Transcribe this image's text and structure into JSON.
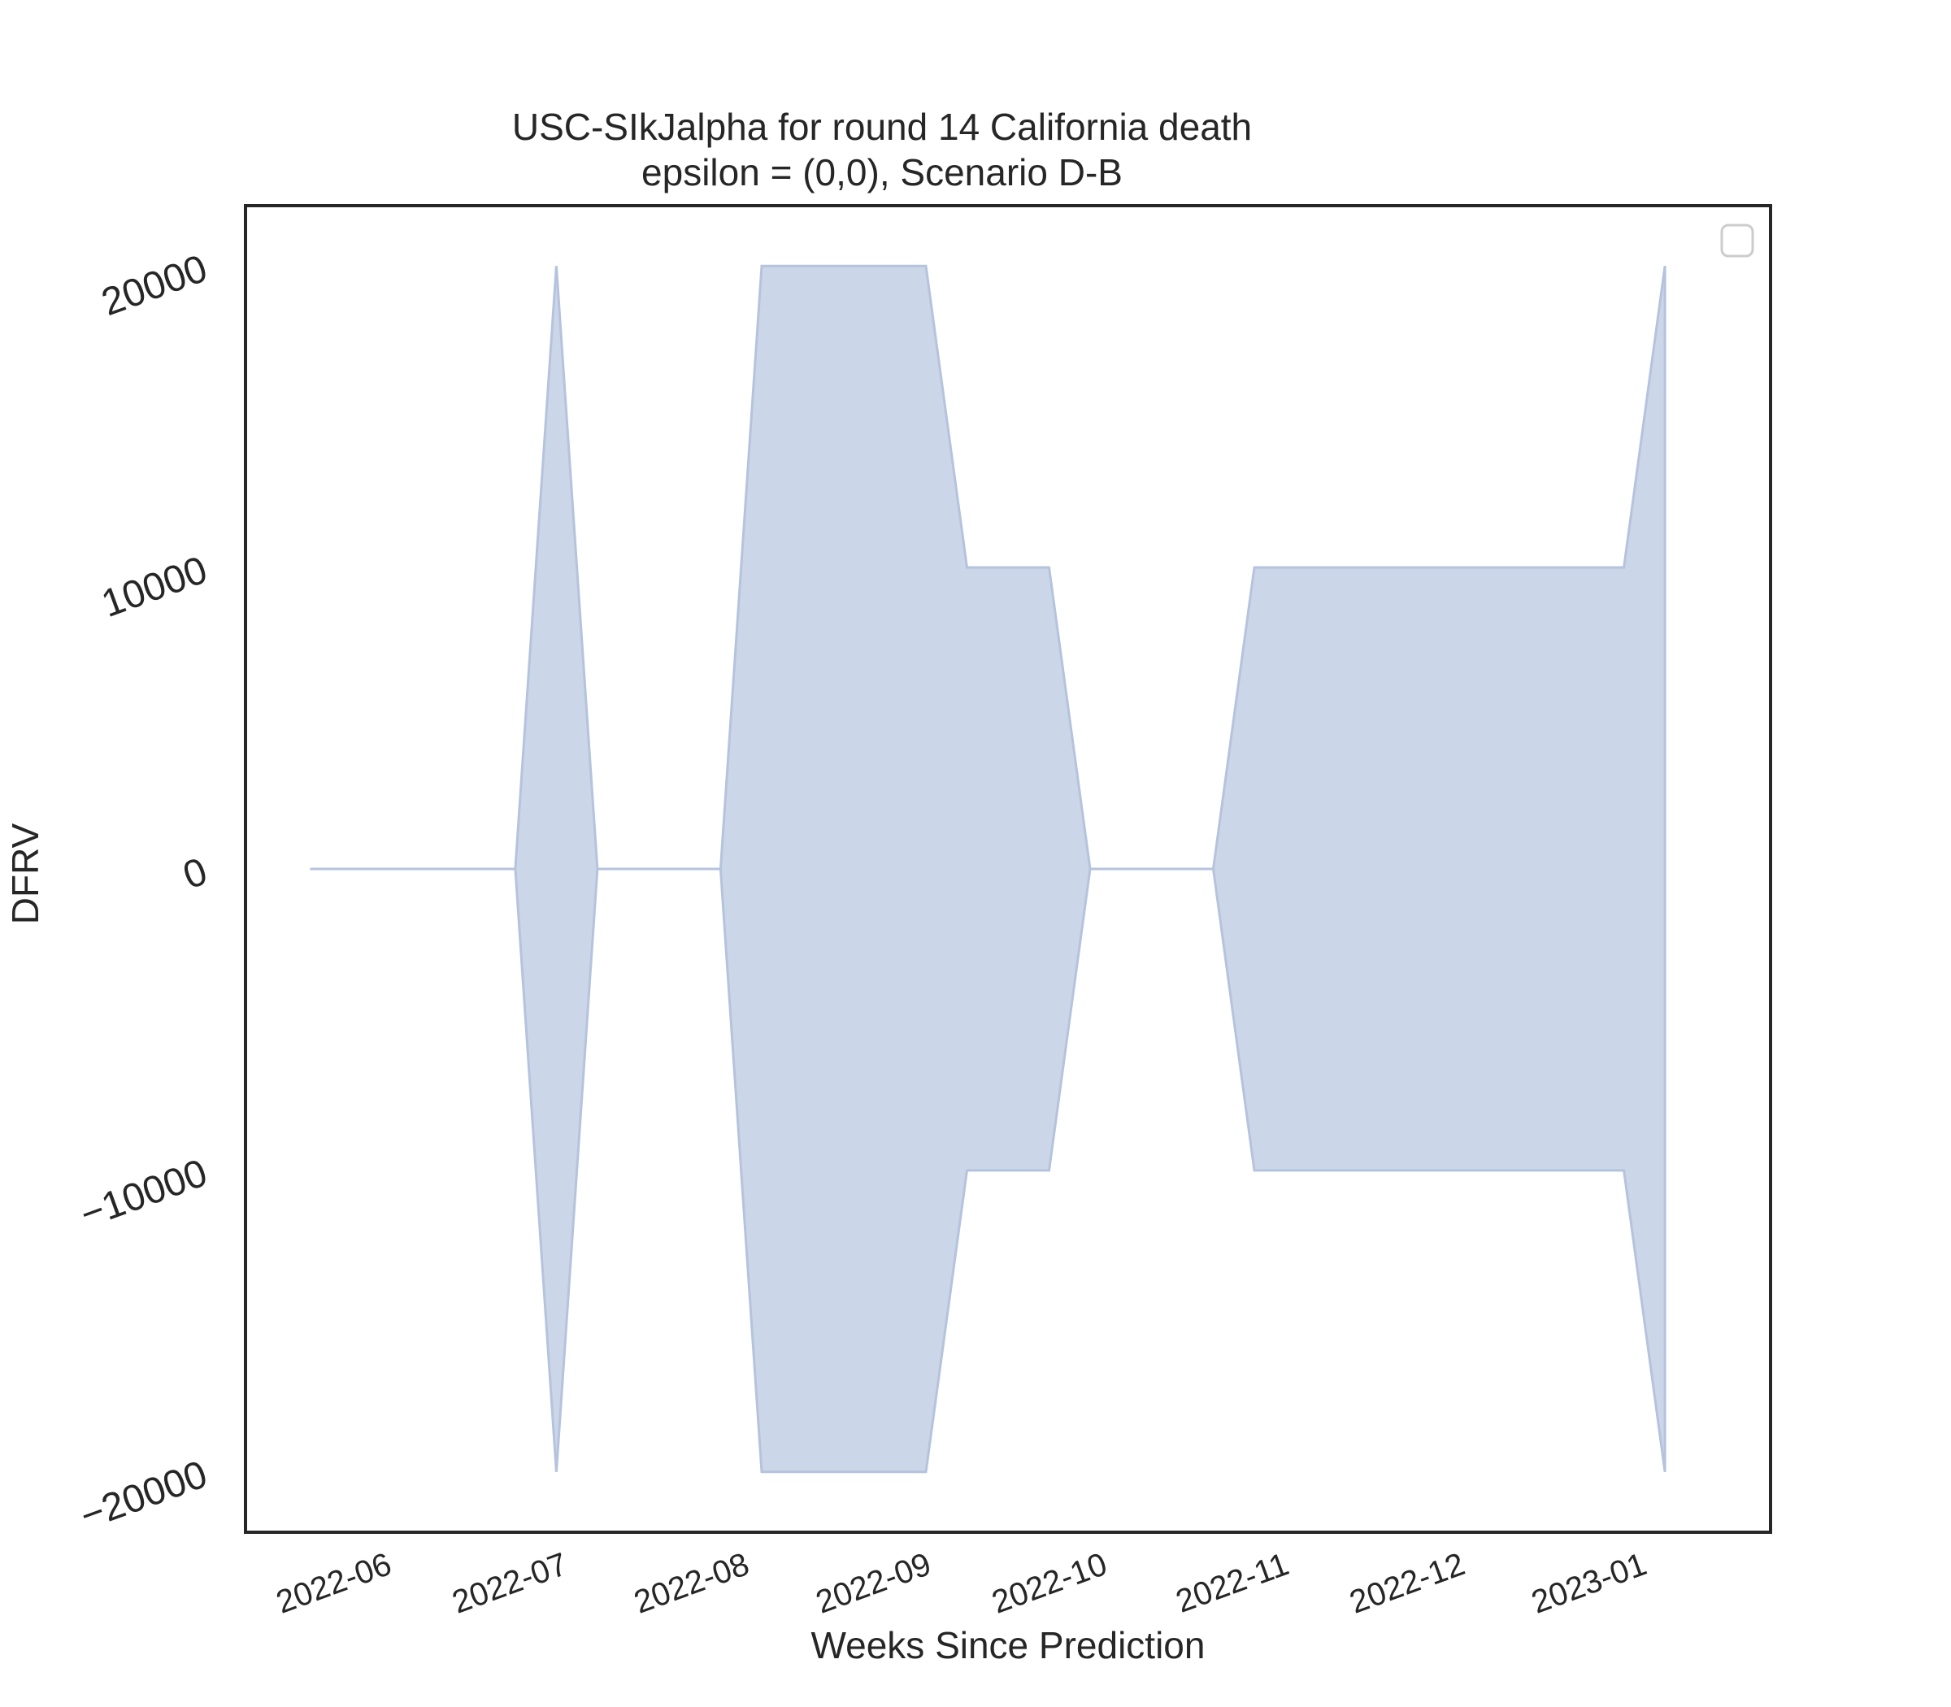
{
  "chart_data": {
    "type": "area",
    "title": "USC-SIkJalpha for round 14 California death",
    "subtitle": "epsilon = (0,0), Scenario D-B",
    "xlabel": "Weeks Since Prediction",
    "ylabel": "DFRV",
    "x_ticks": [
      "2022-06",
      "2022-07",
      "2022-08",
      "2022-09",
      "2022-10",
      "2022-11",
      "2022-12",
      "2023-01"
    ],
    "y_ticks": [
      "−20000",
      "−10000",
      "0",
      "10000",
      "20000"
    ],
    "xlim": [
      "2022-05-13",
      "2023-01-28"
    ],
    "ylim": [
      -22000,
      22000
    ],
    "grid": false,
    "legend": "top-right (empty)",
    "fill_color": "#cbd6e8",
    "edge_color": "#b5c3dd",
    "series": [
      {
        "x": [
          "2022-05-24",
          "2022-06-28",
          "2022-07-05",
          "2022-07-12",
          "2022-08-02",
          "2022-08-09",
          "2022-08-16",
          "2022-08-23",
          "2022-08-30",
          "2022-09-06",
          "2022-09-13",
          "2022-09-20",
          "2022-09-27",
          "2022-10-04",
          "2022-10-11",
          "2022-10-18",
          "2022-10-25",
          "2022-11-01",
          "2022-11-08",
          "2022-11-15",
          "2022-11-22",
          "2022-11-29",
          "2022-12-06",
          "2022-12-13",
          "2022-12-20",
          "2022-12-27",
          "2023-01-03",
          "2023-01-10"
        ],
        "upper": [
          0,
          0,
          20000,
          0,
          0,
          20000,
          20000,
          20000,
          20000,
          20000,
          10000,
          10000,
          10000,
          0,
          0,
          0,
          0,
          10000,
          10000,
          10000,
          10000,
          10000,
          10000,
          10000,
          10000,
          10000,
          10000,
          20000
        ],
        "lower": [
          0,
          0,
          -20000,
          0,
          0,
          -20000,
          -20000,
          -20000,
          -20000,
          -20000,
          -10000,
          -10000,
          -10000,
          0,
          0,
          0,
          0,
          -10000,
          -10000,
          -10000,
          -10000,
          -10000,
          -10000,
          -10000,
          -10000,
          -10000,
          -10000,
          -20000
        ]
      }
    ]
  }
}
